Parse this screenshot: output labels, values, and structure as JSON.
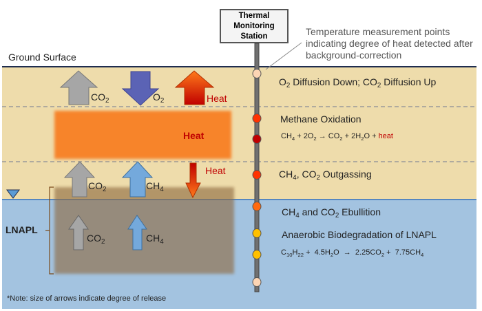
{
  "station_label": "Thermal Monitoring Station",
  "callout": [
    "Temperature measurement points",
    "indicating degree of heat detected after",
    "background-correction"
  ],
  "ground_surface": "Ground Surface",
  "arrows": {
    "co2": "CO",
    "o2": "O",
    "ch4": "CH",
    "heat": "Heat",
    "sub2": "2",
    "sub4": "4"
  },
  "zones": {
    "diffusion": "O2 Diffusion Down; CO2 Diffusion Up",
    "oxidation": "Methane Oxidation",
    "oxidation_eq": "CH4 + 2O2 → CO2 + 2H2O + heat",
    "outgassing": "CH4, CO2 Outgassing",
    "ebullition": "CH4 and CO2 Ebullition",
    "anaerobic": "Anaerobic Biodegradation of LNAPL",
    "anaerobic_eq": "C10H22 + 4.5H2O → 2.25CO2 + 7.75CH4"
  },
  "heat_zone_label": "Heat",
  "lnapl_label": "LNAPL",
  "note": "*Note: size of arrows indicate degree of release",
  "colors": {
    "soil": "#eedcab",
    "water": "#a3c3e0",
    "heat_zone": "#f7842a",
    "lnapl": "#9c8266",
    "co2": "#a6a6a6",
    "o2": "#5b63b5",
    "ch4": "#74a9dc"
  },
  "measurement_points": [
    "light",
    "red-orange",
    "dark-red",
    "red-orange",
    "orange",
    "yellow",
    "yellow",
    "light"
  ]
}
